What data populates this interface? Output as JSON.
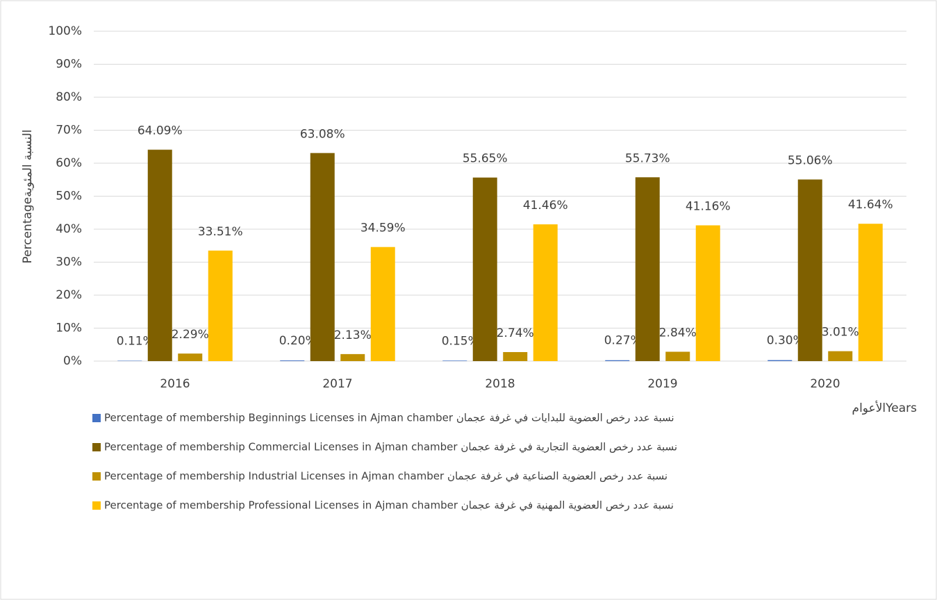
{
  "chart_data": {
    "type": "bar",
    "y_label": "Percentageالنسبة المئوية",
    "x_label": "الأعوامYears",
    "categories": [
      "2016",
      "2017",
      "2018",
      "2019",
      "2020"
    ],
    "series": [
      {
        "name": "Percentage of  membership Beginnings Licenses in Ajman chamber  نسبة عدد رخص العضوية للبدايات في غرفة عجمان",
        "color": "#4472c4",
        "values": [
          0.11,
          0.2,
          0.15,
          0.27,
          0.3
        ],
        "value_labels": [
          "0.11%",
          "0.20%",
          "0.15%",
          "0.27%",
          "0.30%"
        ]
      },
      {
        "name": "Percentage of  membership Commercial Licenses  in Ajman chamber  نسبة عدد رخص العضوية التجارية في غرفة عجمان",
        "color": "#7f6000",
        "values": [
          64.09,
          63.08,
          55.65,
          55.73,
          55.06
        ],
        "value_labels": [
          "64.09%",
          "63.08%",
          "55.65%",
          "55.73%",
          "55.06%"
        ]
      },
      {
        "name": "Percentage of  membership Industrial Licenses  in Ajman chamber  نسبة عدد رخص العضوية الصناعية في غرفة عجمان",
        "color": "#bf9000",
        "values": [
          2.29,
          2.13,
          2.74,
          2.84,
          3.01
        ],
        "value_labels": [
          "2.29%",
          "2.13%",
          "2.74%",
          "2.84%",
          "3.01%"
        ]
      },
      {
        "name": "Percentage of  membership   Professional Licenses in Ajman chamber  نسبة عدد رخص العضوية المهنية في غرفة عجمان",
        "color": "#ffc000",
        "values": [
          33.51,
          34.59,
          41.46,
          41.16,
          41.64
        ],
        "value_labels": [
          "33.51%",
          "34.59%",
          "41.46%",
          "41.16%",
          "41.64%"
        ]
      }
    ],
    "ylim": [
      0,
      100
    ],
    "yticks": [
      {
        "value": 0,
        "label": "0%"
      },
      {
        "value": 10,
        "label": "10%"
      },
      {
        "value": 20,
        "label": "20%"
      },
      {
        "value": 30,
        "label": "30%"
      },
      {
        "value": 40,
        "label": "40%"
      },
      {
        "value": 50,
        "label": "50%"
      },
      {
        "value": 60,
        "label": "60%"
      },
      {
        "value": 70,
        "label": "70%"
      },
      {
        "value": 80,
        "label": "80%"
      },
      {
        "value": 90,
        "label": "90%"
      },
      {
        "value": 100,
        "label": "100%"
      }
    ],
    "grid": true
  }
}
